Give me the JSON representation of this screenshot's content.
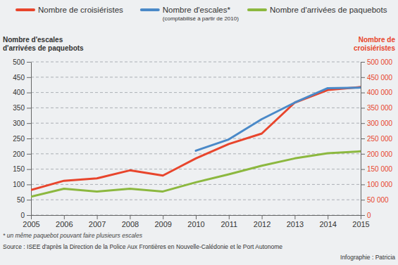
{
  "chart_data": {
    "type": "line",
    "categories": [
      "2005",
      "2006",
      "2007",
      "2008",
      "2009",
      "2010",
      "2011",
      "2012",
      "2013",
      "2014",
      "2015"
    ],
    "series": [
      {
        "name": "Nombre de croisiéristes",
        "color": "#e8452c",
        "axis": "y2",
        "values": [
          82000,
          112000,
          120000,
          146000,
          129000,
          185000,
          232000,
          266000,
          367000,
          408000,
          418000
        ]
      },
      {
        "name": "Nombre d'escales*",
        "color": "#4a89c8",
        "axis": "y",
        "values": [
          null,
          null,
          null,
          null,
          null,
          210,
          247,
          313,
          367,
          414,
          416
        ]
      },
      {
        "name": "Nombre d'arrivées de paquebots",
        "color": "#8cb83f",
        "axis": "y",
        "values": [
          60,
          86,
          77,
          86,
          77,
          107,
          133,
          161,
          185,
          202,
          208
        ]
      }
    ],
    "y_label": [
      "Nombre d'escales",
      "d'arrivées de paquebots"
    ],
    "y2_label": [
      "Nombre de",
      "croisiéristes"
    ],
    "ylim": [
      0,
      500
    ],
    "yticks": [
      0,
      50,
      100,
      150,
      200,
      250,
      300,
      350,
      400,
      450,
      500
    ],
    "y2lim": [
      0,
      500000
    ],
    "y2ticks": [
      0,
      {
        "value": 50000,
        "label": "50 000"
      },
      {
        "value": 100000,
        "label": "100 000"
      },
      {
        "value": 150000,
        "label": "150 000"
      },
      {
        "value": 200000,
        "label": "200 000"
      },
      {
        "value": 250000,
        "label": "250 000"
      },
      {
        "value": 300000,
        "label": "300 000"
      },
      {
        "value": 350000,
        "label": "350 000"
      },
      {
        "value": 400000,
        "label": "400 000"
      },
      {
        "value": 450000,
        "label": "450 000"
      },
      {
        "value": 500000,
        "label": "500 000"
      }
    ],
    "annotations": [
      "(comptabilisé à partir de 2010)",
      "* un même paquebot pouvant faire plusieurs escales"
    ],
    "source": "Source : ISEE d'après la Direction de la Police Aux Frontières en Nouvelle-Calédonie et le Port Autonome",
    "credit": "Infographie : Patricia",
    "grid": true,
    "legend": "top"
  }
}
